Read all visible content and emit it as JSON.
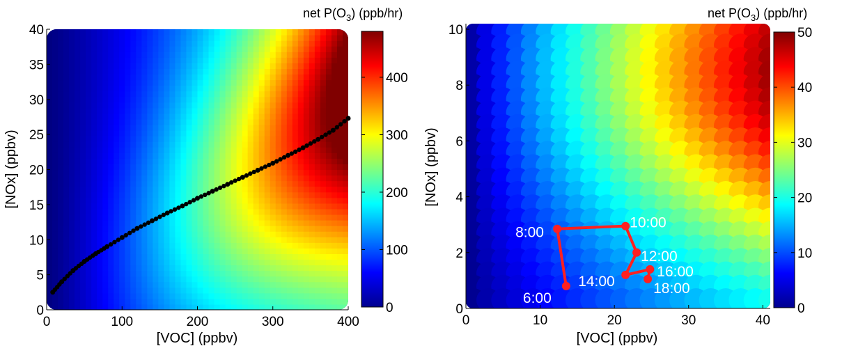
{
  "chart_data": [
    {
      "type": "heatmap",
      "title": "",
      "xlabel": "[VOC] (ppbv)",
      "ylabel": "[NOx] (ppbv)",
      "xlim": [
        0,
        400
      ],
      "ylim": [
        0,
        40
      ],
      "xticks": [
        "0",
        "100",
        "200",
        "300",
        "400"
      ],
      "yticks": [
        "0",
        "5",
        "10",
        "15",
        "20",
        "25",
        "30",
        "35",
        "40"
      ],
      "colorbar": {
        "label_main": "net P(O",
        "label_sub": "3",
        "label_end": ") (ppb/hr)",
        "range": [
          0,
          480
        ],
        "ticks": [
          "0",
          "100",
          "200",
          "300",
          "400"
        ],
        "colormap": "jet"
      },
      "series": [
        {
          "style": "line-with-markers",
          "color": "#000000",
          "x": [
            8,
            20,
            35,
            50,
            65,
            80,
            100,
            120,
            140,
            160,
            180,
            200,
            220,
            240,
            260,
            280,
            300,
            320,
            340,
            360,
            380,
            400
          ],
          "y": [
            2.5,
            4.0,
            5.6,
            6.9,
            8.0,
            9.0,
            10.3,
            11.6,
            12.7,
            13.8,
            14.8,
            15.9,
            16.9,
            17.9,
            18.9,
            19.9,
            20.9,
            22.0,
            23.1,
            24.3,
            25.6,
            27.3
          ]
        }
      ]
    },
    {
      "type": "heatmap",
      "title": "",
      "xlabel": "[VOC] (ppbv)",
      "ylabel": "[NOx] (ppbv)",
      "xlim": [
        0,
        41
      ],
      "ylim": [
        0,
        10.2
      ],
      "xticks": [
        "0",
        "10",
        "20",
        "30",
        "40"
      ],
      "yticks": [
        "0",
        "2",
        "4",
        "6",
        "8",
        "10"
      ],
      "colorbar": {
        "label_main": "net P(O",
        "label_sub": "3",
        "label_end": ") (ppb/hr)",
        "range": [
          0,
          50
        ],
        "ticks": [
          "0",
          "10",
          "20",
          "30",
          "40",
          "50"
        ],
        "colormap": "jet"
      },
      "series": [
        {
          "style": "line-with-markers",
          "color": "#ff2020",
          "x": [
            13.5,
            12.3,
            21.5,
            23.0,
            21.5,
            24.8,
            24.5
          ],
          "y": [
            0.8,
            2.85,
            2.95,
            2.0,
            1.2,
            1.4,
            1.05
          ],
          "labels": [
            "6:00",
            "8:00",
            "10:00",
            "12:00",
            "14:00",
            "16:00",
            "18:00"
          ]
        }
      ]
    }
  ]
}
